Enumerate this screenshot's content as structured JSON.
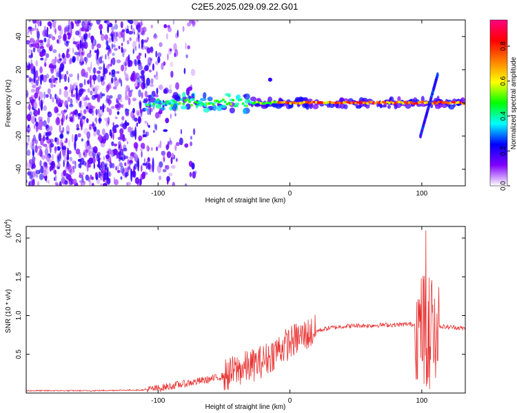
{
  "title": "C2E5.2025.029.09.22.G01",
  "chart_data": [
    {
      "type": "heatmap",
      "xlabel": "Height of straight line (km)",
      "ylabel": "Frequency (Hz)",
      "xlim": [
        -200,
        133
      ],
      "ylim": [
        -50,
        50
      ],
      "x_ticks": [
        -100,
        0,
        100
      ],
      "x_tick_labels": [
        "-100",
        "0",
        "100"
      ],
      "y_ticks": [
        -40,
        -20,
        0,
        20,
        40
      ],
      "y_tick_labels": [
        "-40",
        "-20",
        "0",
        "20",
        "40"
      ],
      "colorbar": {
        "label": "Normalized spectral amplitude",
        "range": [
          0.0,
          0.95
        ],
        "ticks": [
          0.0,
          0.2,
          0.4,
          0.6,
          0.8
        ],
        "tick_labels": [
          "0.0",
          "0.2",
          "0.4",
          "0.6",
          "0.8"
        ],
        "colormap": [
          "#ffffff",
          "#8000ff",
          "#0000ff",
          "#00ffff",
          "#00ff00",
          "#ffff00",
          "#ff8000",
          "#ff0000",
          "#ff0080"
        ]
      },
      "features": {
        "noise_region_x": [
          -200,
          -85
        ],
        "carrier_line_frequency": 0,
        "carrier_line_x": [
          -110,
          133
        ],
        "chirp": {
          "x": [
            99,
            112
          ],
          "f": [
            -20,
            17
          ]
        }
      }
    },
    {
      "type": "line",
      "xlabel": "Height of straight line (km)",
      "ylabel": "SNR (10 * v/v)",
      "y_multiplier": "(x10",
      "y_multiplier_exponent": "4",
      "y_multiplier_close": ")",
      "xlim": [
        -200,
        133
      ],
      "ylim": [
        0,
        2.15
      ],
      "x_ticks": [
        -100,
        0,
        100
      ],
      "x_tick_labels": [
        "-100",
        "0",
        "100"
      ],
      "y_ticks": [
        0.5,
        1.0,
        1.5,
        2.0
      ],
      "y_tick_labels": [
        "0.5",
        "1.0",
        "1.5",
        "2.0"
      ],
      "color": "#e83030",
      "series": [
        {
          "x": [
            -200,
            -150,
            -110,
            -100,
            -90,
            -80,
            -70,
            -60,
            -50,
            -45,
            -40,
            -35,
            -30,
            -25,
            -20,
            -15,
            -10,
            -5,
            0,
            5,
            10,
            20,
            30,
            40,
            50,
            60,
            70,
            80,
            90,
            95,
            98,
            100,
            102,
            104,
            106,
            108,
            110,
            112,
            115,
            120,
            125,
            133
          ],
          "y": [
            0.03,
            0.03,
            0.04,
            0.06,
            0.09,
            0.12,
            0.15,
            0.18,
            0.22,
            0.25,
            0.3,
            0.32,
            0.35,
            0.38,
            0.42,
            0.47,
            0.55,
            0.6,
            0.65,
            0.7,
            0.74,
            0.8,
            0.84,
            0.86,
            0.87,
            0.87,
            0.88,
            0.88,
            0.89,
            0.88,
            0.8,
            0.85,
            0.95,
            0.75,
            0.9,
            0.8,
            0.85,
            0.88,
            0.86,
            0.85,
            0.85,
            0.83
          ]
        }
      ]
    }
  ]
}
